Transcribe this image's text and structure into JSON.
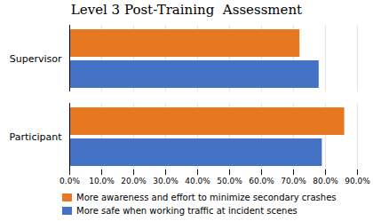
{
  "chart_data": {
    "type": "bar",
    "orientation": "horizontal",
    "title": "Level 3 Post-Training  Assessment",
    "categories": [
      "Supervisor",
      "Participant"
    ],
    "series": [
      {
        "name": "More awareness and effort to minimize secondary crashes",
        "color": "#E87722",
        "values": [
          0.72,
          0.86
        ]
      },
      {
        "name": "More safe when working traffic at incident scenes",
        "color": "#4472C4",
        "values": [
          0.78,
          0.79
        ]
      }
    ],
    "xlim": [
      0,
      0.9
    ],
    "xticks": [
      {
        "value": 0.0,
        "label": "0.0%"
      },
      {
        "value": 0.1,
        "label": "10.0%"
      },
      {
        "value": 0.2,
        "label": "20.0%"
      },
      {
        "value": 0.3,
        "label": "30.0%"
      },
      {
        "value": 0.4,
        "label": "40.0%"
      },
      {
        "value": 0.5,
        "label": "50.0%"
      },
      {
        "value": 0.6,
        "label": "60.0%"
      },
      {
        "value": 0.7,
        "label": "70.0%"
      },
      {
        "value": 0.8,
        "label": "80.0%"
      },
      {
        "value": 0.9,
        "label": "90.0%"
      }
    ],
    "grid": true,
    "legend": "lower left"
  }
}
